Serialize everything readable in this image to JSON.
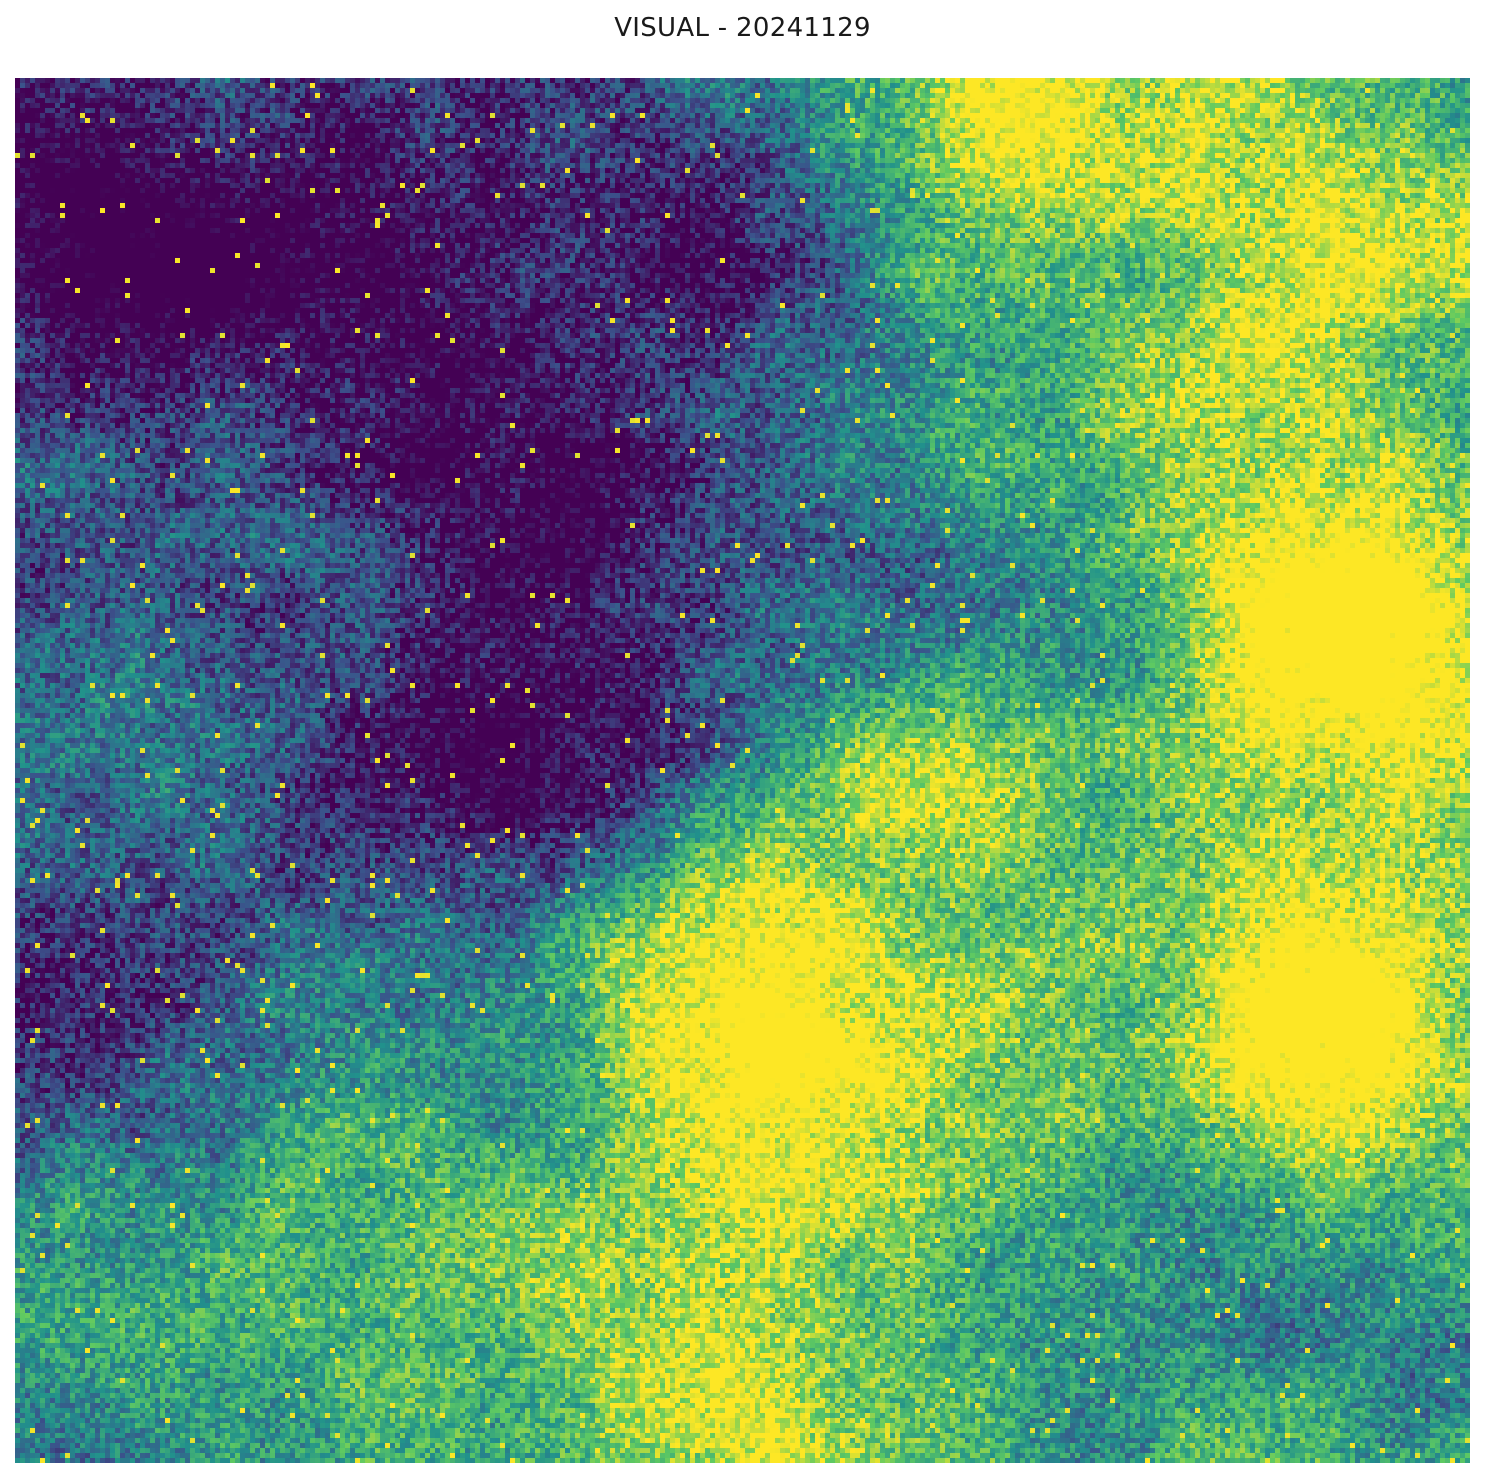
{
  "figure": {
    "title": "VISUAL - 20241129"
  },
  "image": {
    "colormap": "viridis",
    "colormap_stops": [
      "#440154",
      "#3b528b",
      "#21918c",
      "#5ec962",
      "#fde725"
    ],
    "axes_visible": false
  }
}
